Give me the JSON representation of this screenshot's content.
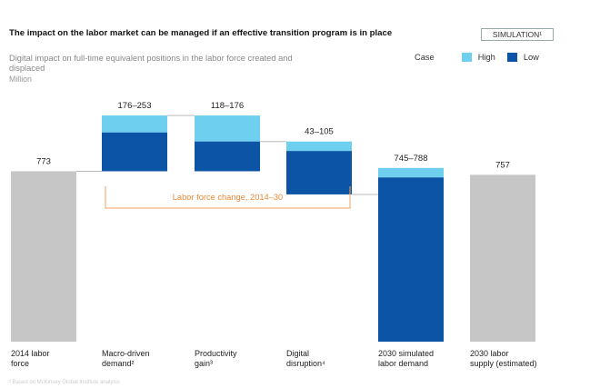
{
  "header": {
    "title": "The impact on the labor market can be managed if an effective transition program is in place",
    "badge": "SIMULATION¹"
  },
  "subtitle": "Digital impact on full-time equivalent positions in the labor force created and displaced",
  "unit": "Million",
  "legend": {
    "case_label": "Case",
    "high_label": "High",
    "low_label": "Low"
  },
  "footnote": "¹ Based on McKinsey Global Institute analysis",
  "colors": {
    "high": "#6fcfef",
    "low": "#0b54a6",
    "base": "#c6c6c6",
    "bracket": "#f2a25c",
    "connector": "#bbbbbb"
  },
  "chart_data": {
    "type": "bar",
    "title": "Digital impact on full-time equivalent positions in the labor force created and displaced",
    "ylabel": "Million",
    "ylim": [
      0,
      1000
    ],
    "categories": [
      "2014 labor force",
      "Macro-driven demand²",
      "Productivity gain³",
      "Digital disruption⁴",
      "2030 simulated labor demand",
      "2030 labor supply (estimated)"
    ],
    "category_lines": [
      [
        "2014 labor",
        "force"
      ],
      [
        "Macro-driven",
        "demand²"
      ],
      [
        "Productivity",
        "gain³"
      ],
      [
        "Digital",
        "disruption⁴"
      ],
      [
        "2030 simulated",
        "labor demand"
      ],
      [
        "2030 labor",
        "supply (estimated)"
      ]
    ],
    "value_labels": [
      "773",
      "176–253",
      "118–176",
      "43–105",
      "745–788",
      "757"
    ],
    "bars": [
      {
        "kind": "total",
        "value": 773
      },
      {
        "kind": "increase",
        "low": 176,
        "high": 253
      },
      {
        "kind": "decrease",
        "low": 118,
        "high": 176
      },
      {
        "kind": "decrease",
        "low": 43,
        "high": 105
      },
      {
        "kind": "total",
        "low": 745,
        "high": 788
      },
      {
        "kind": "total",
        "value": 757
      }
    ],
    "annotation": "Labor force change, 2014–30"
  }
}
